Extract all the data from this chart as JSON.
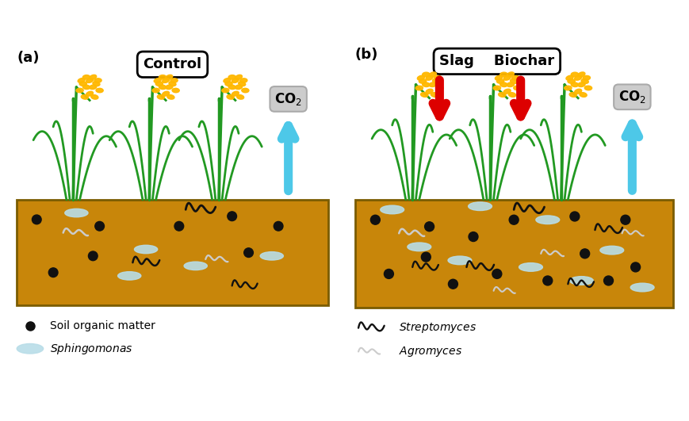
{
  "fig_width": 8.7,
  "fig_height": 5.31,
  "bg_color": "#ffffff",
  "soil_color": "#c8860a",
  "soil_border_color": "#7a5c00",
  "panel_a_label": "(a)",
  "panel_b_label": "(b)",
  "control_label": "Control",
  "slag_label": "Slag",
  "biochar_label": "Biochar",
  "co2_box_color": "#cccccc",
  "arrow_up_color": "#4dc8e8",
  "arrow_down_color": "#dd0000",
  "stem_color": "#228822",
  "leaf_color": "#229922",
  "grain_color": "#FFB800",
  "dot_color": "#111111",
  "sphingo_color": "#b8dde8",
  "strept_color": "#111111",
  "agro_color": "#cccccc"
}
